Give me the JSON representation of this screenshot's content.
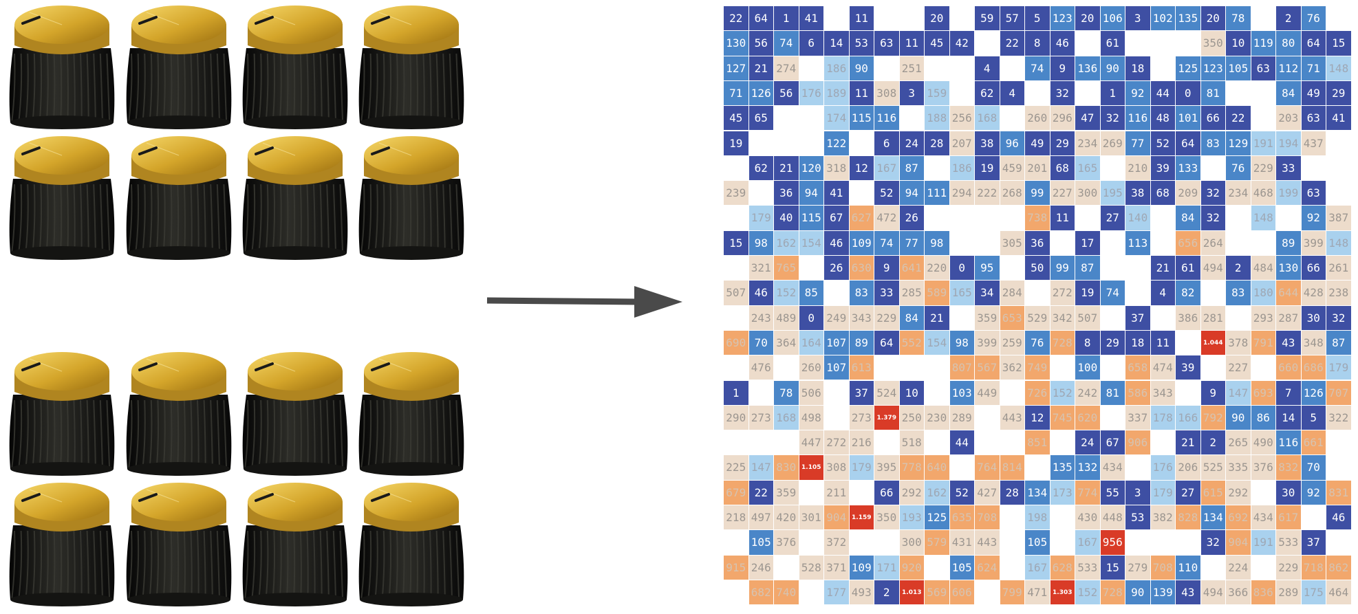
{
  "diagram": {
    "before_label": "",
    "after_label": ""
  },
  "knob_groups": [
    {
      "name": "top-knob-group",
      "count": 8
    },
    {
      "name": "bottom-knob-group",
      "count": 8
    }
  ],
  "colors": {
    "knob_gold": "#d4a52a",
    "knob_black": "#1b1b18",
    "arrow": "#4a4a4a",
    "dark_blue": "#3e4fa3",
    "mid_blue": "#4a86c8",
    "light_blue": "#a9d1ee",
    "beige": "#eddccb",
    "orange": "#f2a76c",
    "red": "#d93b27"
  },
  "heatmap": {
    "rows": [
      [
        "22",
        "64",
        "1",
        "41",
        "",
        "11",
        "",
        "",
        "20",
        "",
        "59",
        "57",
        "5",
        "123",
        "20",
        "106",
        "3",
        "102",
        "135",
        "20",
        "78",
        "",
        "2",
        "76",
        ""
      ],
      [
        "130",
        "56",
        "74",
        "6",
        "14",
        "53",
        "63",
        "11",
        "45",
        "42",
        "",
        "22",
        "8",
        "46",
        "",
        "61",
        "",
        "",
        "",
        "350",
        "10",
        "119",
        "80",
        "64",
        "15"
      ],
      [
        "127",
        "21",
        "274",
        "",
        "186",
        "90",
        "",
        "251",
        "",
        "",
        "4",
        "",
        "74",
        "9",
        "136",
        "90",
        "18",
        "",
        "125",
        "123",
        "105",
        "63",
        "112",
        "71",
        "148"
      ],
      [
        "71",
        "126",
        "56",
        "176",
        "189",
        "11",
        "308",
        "3",
        "159",
        "",
        "62",
        "4",
        "",
        "32",
        "",
        "1",
        "92",
        "44",
        "0",
        "81",
        "",
        "",
        "84",
        "49",
        "29"
      ],
      [
        "45",
        "65",
        "",
        "",
        "174",
        "115",
        "116",
        "",
        "188",
        "256",
        "168",
        "",
        "260",
        "296",
        "47",
        "32",
        "116",
        "48",
        "101",
        "66",
        "22",
        "",
        "203",
        "63",
        "41"
      ],
      [
        "19",
        "",
        "",
        "",
        "122",
        "",
        "6",
        "24",
        "28",
        "207",
        "38",
        "96",
        "49",
        "29",
        "234",
        "269",
        "77",
        "52",
        "64",
        "83",
        "129",
        "191",
        "194",
        "437",
        ""
      ],
      [
        "",
        "62",
        "21",
        "120",
        "318",
        "12",
        "167",
        "87",
        "",
        "186",
        "19",
        "459",
        "201",
        "68",
        "165",
        "",
        "210",
        "39",
        "133",
        "",
        "76",
        "229",
        "33",
        "",
        ""
      ],
      [
        "239",
        "",
        "36",
        "94",
        "41",
        "",
        "52",
        "94",
        "111",
        "294",
        "222",
        "268",
        "99",
        "227",
        "300",
        "195",
        "38",
        "68",
        "209",
        "32",
        "234",
        "468",
        "199",
        "63",
        ""
      ],
      [
        "",
        "179",
        "40",
        "115",
        "67",
        "627",
        "472",
        "26",
        "",
        "",
        "",
        "",
        "738",
        "11",
        "",
        "27",
        "140",
        "",
        "84",
        "32",
        "",
        "148",
        "",
        "92",
        "387"
      ],
      [
        "15",
        "98",
        "162",
        "154",
        "46",
        "109",
        "74",
        "77",
        "98",
        "",
        "",
        "305",
        "36",
        "",
        "17",
        "",
        "113",
        "",
        "656",
        "264",
        "",
        "",
        "89",
        "399",
        "148"
      ],
      [
        "",
        "321",
        "765",
        "",
        "26",
        "630",
        "9",
        "641",
        "220",
        "0",
        "95",
        "",
        "50",
        "99",
        "87",
        "",
        "",
        "21",
        "61",
        "494",
        "2",
        "484",
        "130",
        "66",
        "261"
      ],
      [
        "507",
        "46",
        "152",
        "85",
        "",
        "83",
        "33",
        "285",
        "589",
        "165",
        "34",
        "284",
        "",
        "272",
        "19",
        "74",
        "",
        "4",
        "82",
        "",
        "83",
        "180",
        "644",
        "428",
        "238"
      ],
      [
        "",
        "243",
        "489",
        "0",
        "249",
        "343",
        "229",
        "84",
        "21",
        "",
        "359",
        "653",
        "529",
        "342",
        "507",
        "",
        "37",
        "",
        "386",
        "281",
        "",
        "293",
        "287",
        "30",
        "32"
      ],
      [
        "690",
        "70",
        "364",
        "164",
        "107",
        "89",
        "64",
        "552",
        "154",
        "98",
        "399",
        "259",
        "76",
        "728",
        "8",
        "29",
        "18",
        "11",
        "",
        "1.044",
        "378",
        "791",
        "43",
        "348",
        "87"
      ],
      [
        "",
        "476",
        "",
        "260",
        "107",
        "613",
        "",
        "",
        "",
        "807",
        "567",
        "362",
        "749",
        "",
        "100",
        "",
        "658",
        "474",
        "39",
        "",
        "227",
        "",
        "660",
        "686",
        "179"
      ],
      [
        "1",
        "",
        "78",
        "506",
        "",
        "37",
        "524",
        "10",
        "",
        "103",
        "449",
        "",
        "726",
        "152",
        "242",
        "81",
        "586",
        "343",
        "",
        "9",
        "147",
        "693",
        "7",
        "126",
        "707"
      ],
      [
        "290",
        "273",
        "168",
        "498",
        "",
        "273",
        "1.379",
        "250",
        "230",
        "289",
        "",
        "443",
        "12",
        "745",
        "620",
        "",
        "337",
        "178",
        "166",
        "792",
        "90",
        "86",
        "14",
        "5",
        "322"
      ],
      [
        "",
        "",
        "",
        "447",
        "272",
        "216",
        "",
        "518",
        "",
        "44",
        "",
        "",
        "851",
        "",
        "24",
        "67",
        "906",
        "",
        "21",
        "2",
        "265",
        "490",
        "116",
        "661",
        ""
      ],
      [
        "225",
        "147",
        "830",
        "1.105",
        "308",
        "179",
        "395",
        "778",
        "640",
        "",
        "764",
        "814",
        "",
        "135",
        "132",
        "434",
        "",
        "176",
        "206",
        "525",
        "335",
        "376",
        "832",
        "70",
        ""
      ],
      [
        "679",
        "22",
        "359",
        "",
        "211",
        "",
        "66",
        "292",
        "162",
        "52",
        "427",
        "28",
        "134",
        "173",
        "774",
        "55",
        "3",
        "179",
        "27",
        "615",
        "292",
        "",
        "30",
        "92",
        "831"
      ],
      [
        "218",
        "497",
        "420",
        "301",
        "904",
        "1.159",
        "350",
        "193",
        "125",
        "635",
        "708",
        "",
        "198",
        "",
        "430",
        "448",
        "53",
        "382",
        "828",
        "134",
        "692",
        "434",
        "617",
        "",
        "46"
      ],
      [
        "",
        "105",
        "376",
        "",
        "372",
        "",
        "",
        "300",
        "579",
        "431",
        "443",
        "",
        "105",
        "",
        "167",
        "956",
        "",
        "",
        "",
        "32",
        "904",
        "191",
        "533",
        "37",
        ""
      ],
      [
        "915",
        "246",
        "",
        "528",
        "371",
        "109",
        "171",
        "920",
        "",
        "105",
        "624",
        "",
        "167",
        "628",
        "533",
        "15",
        "279",
        "708",
        "110",
        "",
        "224",
        "",
        "229",
        "718",
        "862"
      ],
      [
        "",
        "682",
        "740",
        "",
        "177",
        "493",
        "2",
        "1.013",
        "569",
        "606",
        "",
        "799",
        "471",
        "1.303",
        "152",
        "728",
        "90",
        "139",
        "43",
        "494",
        "366",
        "836",
        "289",
        "175",
        "464"
      ]
    ]
  }
}
